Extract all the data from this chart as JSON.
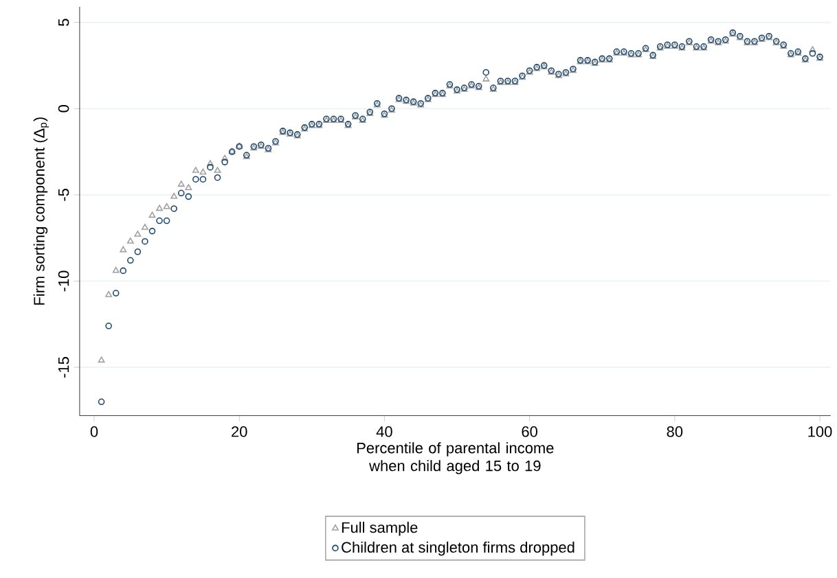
{
  "chart_data": {
    "type": "scatter",
    "xlabel": "Percentile of parental income when child aged 15 to 19",
    "ylabel": "Firm sorting component (Δ$_{p}$)",
    "x": [
      1,
      2,
      3,
      4,
      5,
      6,
      7,
      8,
      9,
      10,
      11,
      12,
      13,
      14,
      15,
      16,
      17,
      18,
      19,
      20,
      21,
      22,
      23,
      24,
      25,
      26,
      27,
      28,
      29,
      30,
      31,
      32,
      33,
      34,
      35,
      36,
      37,
      38,
      39,
      40,
      41,
      42,
      43,
      44,
      45,
      46,
      47,
      48,
      49,
      50,
      51,
      52,
      53,
      54,
      55,
      56,
      57,
      58,
      59,
      60,
      61,
      62,
      63,
      64,
      65,
      66,
      67,
      68,
      69,
      70,
      71,
      72,
      73,
      74,
      75,
      76,
      77,
      78,
      79,
      80,
      81,
      82,
      83,
      84,
      85,
      86,
      87,
      88,
      89,
      90,
      91,
      92,
      93,
      94,
      95,
      96,
      97,
      98,
      99,
      100
    ],
    "series": [
      {
        "name": "Full sample",
        "color": "#a0a0a0",
        "marker": "triangle",
        "values": [
          -14.6,
          -10.8,
          -9.4,
          -8.2,
          -7.7,
          -7.3,
          -6.9,
          -6.2,
          -5.8,
          -5.7,
          -5.1,
          -4.4,
          -4.6,
          -3.6,
          -3.7,
          -3.2,
          -3.6,
          -2.9,
          -2.5,
          -2.2,
          -2.8,
          -2.3,
          -2.2,
          -2.4,
          -2.0,
          -1.4,
          -1.5,
          -1.6,
          -1.2,
          -1.0,
          -1.0,
          -0.7,
          -0.7,
          -0.7,
          -1.0,
          -0.5,
          -0.7,
          -0.3,
          0.2,
          -0.4,
          -0.1,
          0.5,
          0.4,
          0.3,
          0.2,
          0.5,
          0.8,
          0.8,
          1.3,
          1.0,
          1.1,
          1.3,
          1.2,
          1.7,
          1.1,
          1.5,
          1.5,
          1.5,
          1.8,
          2.1,
          2.3,
          2.4,
          2.1,
          1.9,
          2.0,
          2.2,
          2.7,
          2.7,
          2.6,
          2.8,
          2.8,
          3.2,
          3.2,
          3.1,
          3.1,
          3.4,
          3.0,
          3.5,
          3.6,
          3.6,
          3.5,
          3.8,
          3.5,
          3.5,
          3.9,
          3.8,
          3.9,
          4.3,
          4.1,
          3.8,
          3.8,
          4.0,
          4.1,
          3.8,
          3.6,
          3.1,
          3.2,
          2.8,
          3.4,
          2.9
        ]
      },
      {
        "name": "Children at singleton firms dropped",
        "color": "#1a476f",
        "marker": "circle",
        "values": [
          -17.0,
          -12.6,
          -10.7,
          -9.4,
          -8.8,
          -8.3,
          -7.7,
          -7.1,
          -6.5,
          -6.5,
          -5.8,
          -4.9,
          -5.1,
          -4.1,
          -4.1,
          -3.4,
          -4.0,
          -3.1,
          -2.5,
          -2.2,
          -2.7,
          -2.2,
          -2.1,
          -2.3,
          -1.9,
          -1.3,
          -1.4,
          -1.5,
          -1.1,
          -0.9,
          -0.9,
          -0.6,
          -0.6,
          -0.6,
          -0.9,
          -0.4,
          -0.6,
          -0.2,
          0.3,
          -0.3,
          0.0,
          0.6,
          0.5,
          0.4,
          0.3,
          0.6,
          0.9,
          0.9,
          1.4,
          1.1,
          1.2,
          1.4,
          1.3,
          2.1,
          1.2,
          1.6,
          1.6,
          1.6,
          1.9,
          2.2,
          2.4,
          2.5,
          2.2,
          2.0,
          2.1,
          2.3,
          2.8,
          2.8,
          2.7,
          2.9,
          2.9,
          3.3,
          3.3,
          3.2,
          3.2,
          3.5,
          3.1,
          3.6,
          3.7,
          3.7,
          3.6,
          3.9,
          3.6,
          3.6,
          4.0,
          3.9,
          4.0,
          4.4,
          4.2,
          3.9,
          3.9,
          4.1,
          4.2,
          3.9,
          3.7,
          3.2,
          3.3,
          2.9,
          3.2,
          3.0
        ]
      }
    ],
    "xlim": [
      -2,
      101.5
    ],
    "ylim": [
      -17.8,
      5.9
    ],
    "xticks": [
      0,
      20,
      40,
      60,
      80,
      100
    ],
    "yticks": [
      -15,
      -10,
      -5,
      0,
      5
    ],
    "grid": "y",
    "legend": "bottom"
  }
}
